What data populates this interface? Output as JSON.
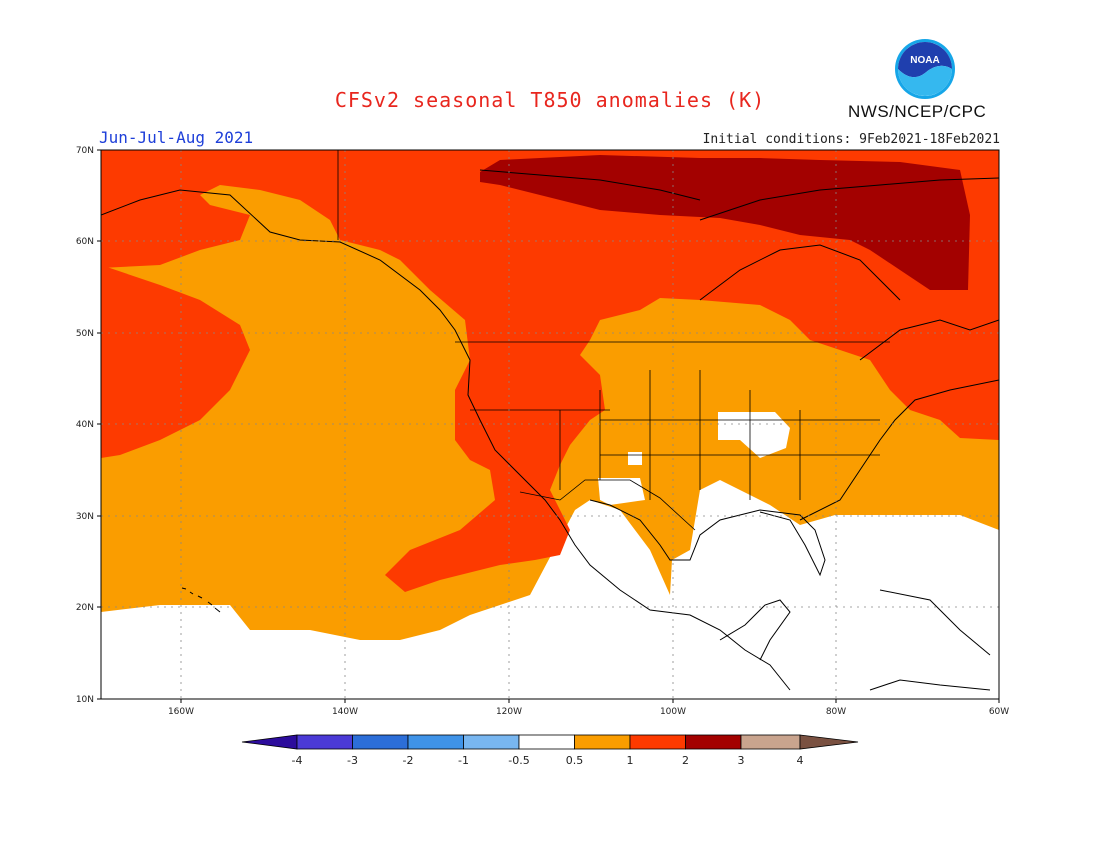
{
  "header": {
    "title": "CFSv2 seasonal T850 anomalies (K)",
    "period": "Jun-Jul-Aug 2021",
    "initial_conditions": "Initial conditions: 9Feb2021-18Feb2021",
    "agency": "NWS/NCEP/CPC",
    "logo_text": "NOAA"
  },
  "map": {
    "lat_labels": [
      "70N",
      "60N",
      "50N",
      "40N",
      "30N",
      "20N",
      "10N"
    ],
    "lon_labels": [
      "160W",
      "140W",
      "120W",
      "100W",
      "80W",
      "60W"
    ],
    "lat_range": [
      10,
      70
    ],
    "lon_range": [
      "171W",
      "60W"
    ]
  },
  "legend": {
    "labels": [
      "-4",
      "-3",
      "-2",
      "-1",
      "-0.5",
      "0.5",
      "1",
      "2",
      "3",
      "4"
    ],
    "colors": [
      "#2c0c9c",
      "#4b3ad6",
      "#2c6ed8",
      "#3f93e8",
      "#78b6f0",
      "#ffffff",
      "#fa9d00",
      "#fd3a00",
      "#a30100",
      "#c9a48e",
      "#7a5141"
    ]
  },
  "colors": {
    "bin_05_1": "#fa9d00",
    "bin_1_2": "#fd3a00",
    "bin_2_3": "#a30100",
    "title": "#e8261e",
    "period": "#1e3fd9"
  }
}
